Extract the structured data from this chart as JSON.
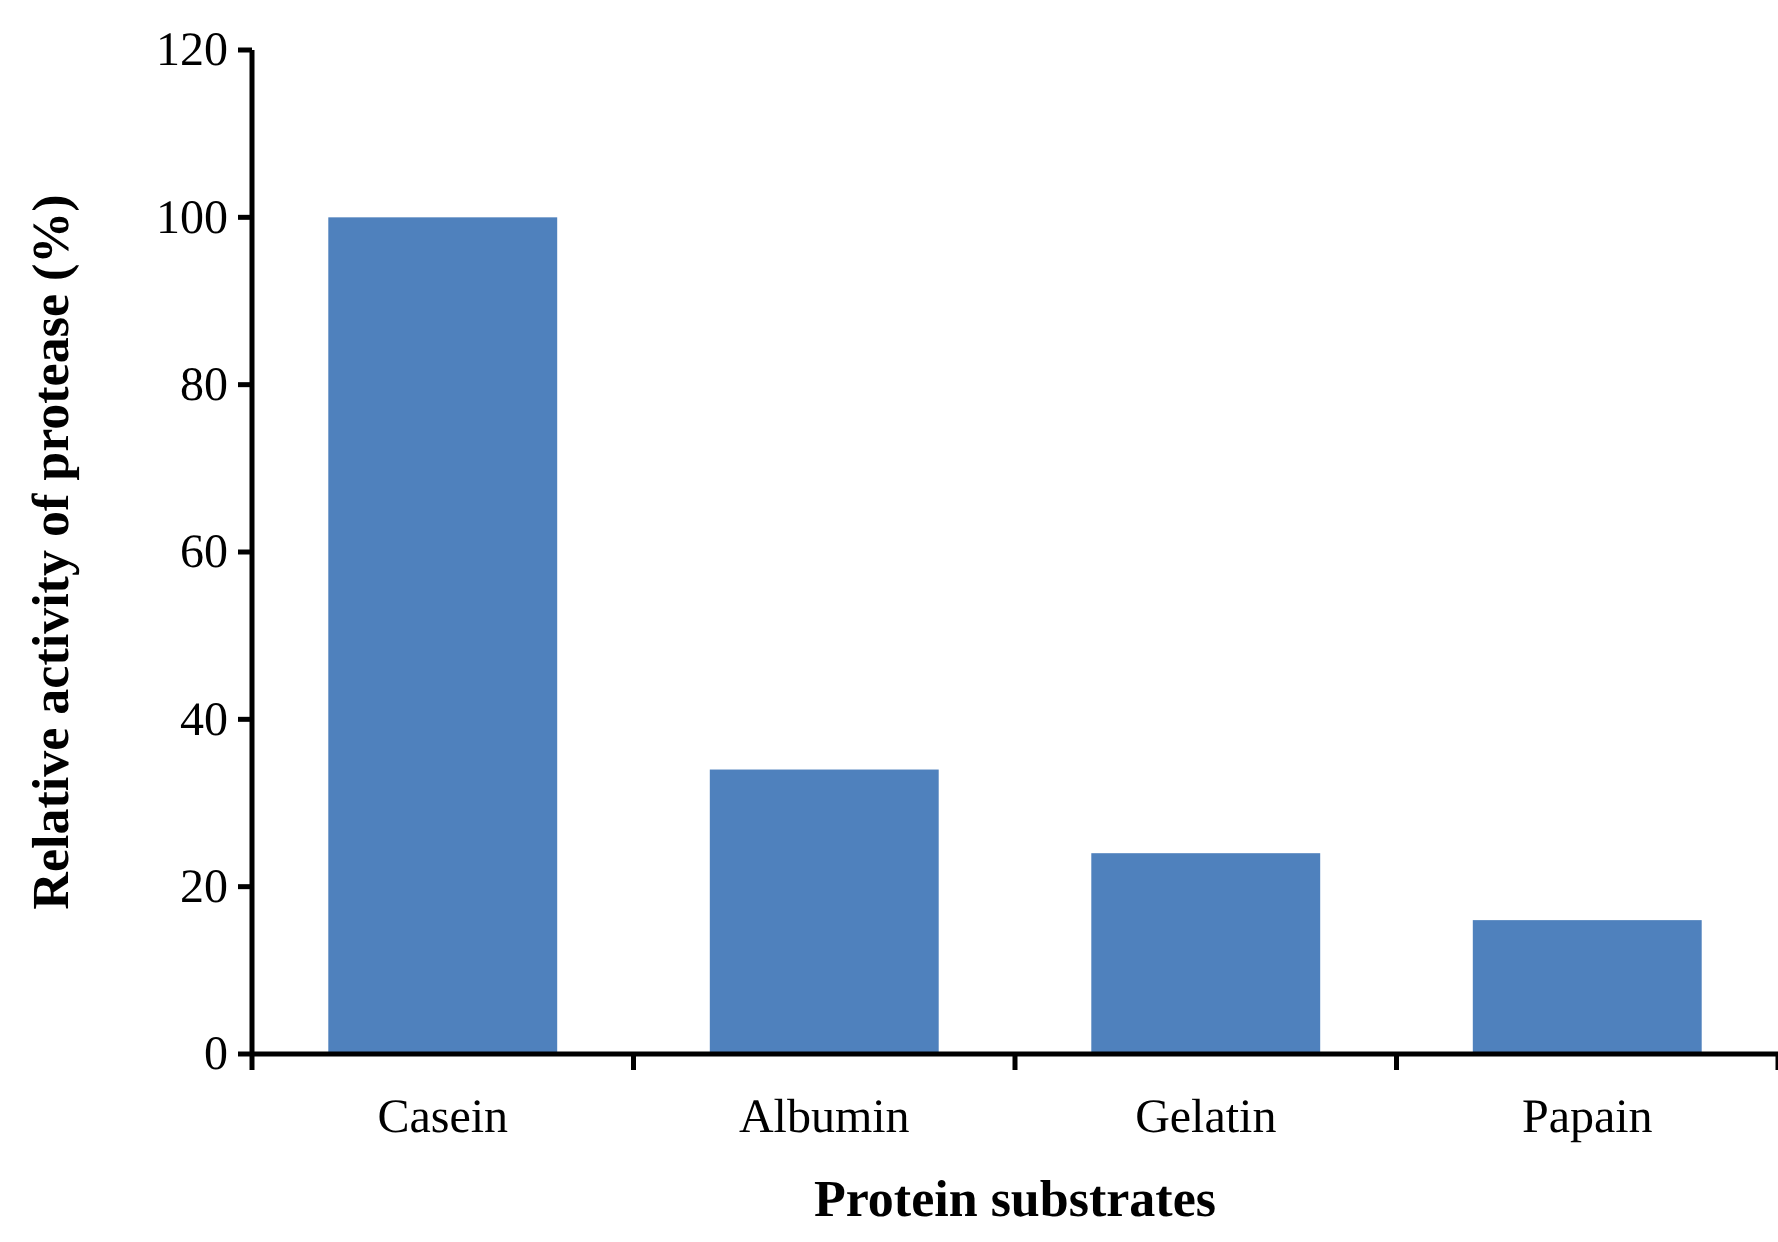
{
  "chart_data": {
    "type": "bar",
    "xlabel": "Protein substrates",
    "ylabel": "Relative activity of protease (%)",
    "categories": [
      "Casein",
      "Albumin",
      "Gelatin",
      "Papain"
    ],
    "values": [
      100,
      34,
      24,
      16
    ],
    "color": "#4f81bd",
    "ylim": [
      0,
      120
    ],
    "yticks": [
      0,
      20,
      40,
      60,
      80,
      100,
      120
    ]
  }
}
